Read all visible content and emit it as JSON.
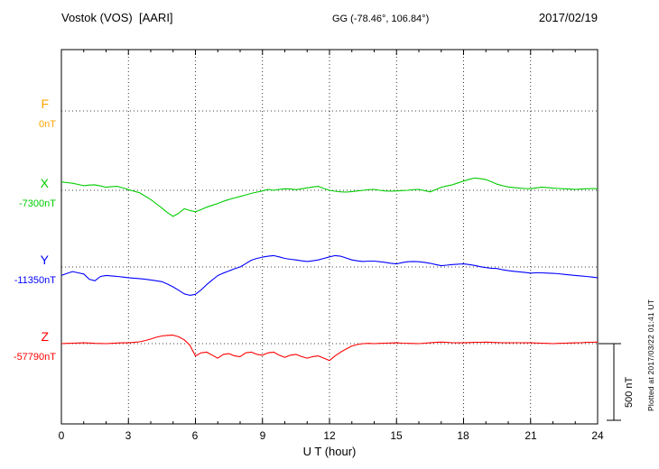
{
  "header": {
    "station_title": "Vostok (VOS)  [AARI]",
    "gg_coords": "GG (-78.46°, 106.84°)",
    "date": "2017/02/19"
  },
  "axis": {
    "xlabel": "U T (hour)",
    "tick_labels": [
      "0",
      "3",
      "6",
      "9",
      "12",
      "15",
      "18",
      "21",
      "24"
    ]
  },
  "scale_bar": {
    "label": "500 nT"
  },
  "footer_note": "Plotted at 2017/03/22 01:41 UT",
  "chart_data": {
    "type": "line",
    "title": "Vostok (VOS) [AARI] magnetogram 2017/02/19",
    "xlabel": "U T (hour)",
    "xlim": [
      0,
      24
    ],
    "xticks": [
      0,
      3,
      6,
      9,
      12,
      15,
      18,
      21,
      24
    ],
    "x_start": 0,
    "x_step_hours": 0.25,
    "scale_bar_nT": 500,
    "grid": "dotted horizontal baselines per component, dotted verticals every 3 h",
    "series": [
      {
        "name": "F",
        "baseline_label": "0nT",
        "color": "#FFA500",
        "values_nT": []
      },
      {
        "name": "X",
        "baseline_label": "-7300nT",
        "color": "#00CC00",
        "values_nT": [
          55,
          50,
          46,
          38,
          30,
          34,
          36,
          28,
          20,
          24,
          26,
          15,
          5,
          -6,
          -16,
          -38,
          -60,
          -88,
          -116,
          -146,
          -170,
          -150,
          -120,
          -132,
          -140,
          -126,
          -110,
          -98,
          -86,
          -72,
          -60,
          -50,
          -40,
          -30,
          -20,
          -12,
          -4,
          6,
          0,
          6,
          10,
          8,
          4,
          10,
          16,
          22,
          26,
          12,
          0,
          -6,
          -10,
          -12,
          -8,
          -4,
          0,
          4,
          6,
          0,
          -4,
          -6,
          -4,
          -2,
          0,
          4,
          6,
          -2,
          -10,
          4,
          20,
          28,
          36,
          48,
          60,
          72,
          80,
          76,
          70,
          56,
          40,
          30,
          22,
          18,
          14,
          12,
          10,
          16,
          20,
          18,
          14,
          12,
          10,
          8,
          6,
          8,
          10,
          12,
          10
        ]
      },
      {
        "name": "Y",
        "baseline_label": "-11350nT",
        "color": "#0000FF",
        "values_nT": [
          -55,
          -42,
          -30,
          -38,
          -46,
          -80,
          -90,
          -62,
          -55,
          -58,
          -62,
          -66,
          -70,
          -73,
          -76,
          -80,
          -85,
          -90,
          -96,
          -112,
          -130,
          -152,
          -175,
          -185,
          -178,
          -150,
          -115,
          -85,
          -56,
          -40,
          -26,
          -12,
          0,
          22,
          44,
          56,
          64,
          70,
          74,
          66,
          56,
          50,
          46,
          40,
          36,
          40,
          46,
          56,
          66,
          74,
          70,
          58,
          46,
          40,
          36,
          38,
          38,
          34,
          30,
          24,
          20,
          28,
          34,
          36,
          34,
          30,
          24,
          16,
          8,
          12,
          16,
          18,
          20,
          16,
          10,
          2,
          -4,
          -8,
          -10,
          -18,
          -24,
          -28,
          -32,
          -36,
          -40,
          -38,
          -38,
          -40,
          -42,
          -44,
          -48,
          -52,
          -55,
          -58,
          -62,
          -66,
          -70
        ]
      },
      {
        "name": "Z",
        "baseline_label": "-57790nT",
        "color": "#FF0000",
        "values_nT": [
          0,
          2,
          3,
          4,
          5,
          4,
          2,
          1,
          0,
          2,
          4,
          5,
          5,
          8,
          12,
          20,
          30,
          42,
          50,
          54,
          55,
          45,
          25,
          -10,
          -80,
          -60,
          -55,
          -75,
          -95,
          -70,
          -65,
          -80,
          -85,
          -60,
          -55,
          -70,
          -75,
          -60,
          -55,
          -75,
          -90,
          -75,
          -70,
          -85,
          -95,
          -85,
          -80,
          -95,
          -110,
          -80,
          -55,
          -35,
          -15,
          -6,
          0,
          2,
          0,
          2,
          3,
          4,
          5,
          3,
          2,
          1,
          0,
          3,
          5,
          8,
          10,
          8,
          6,
          5,
          5,
          7,
          8,
          9,
          10,
          8,
          7,
          6,
          5,
          6,
          6,
          5,
          5,
          4,
          3,
          2,
          0,
          2,
          3,
          4,
          5,
          6,
          8,
          9,
          10
        ]
      }
    ]
  }
}
